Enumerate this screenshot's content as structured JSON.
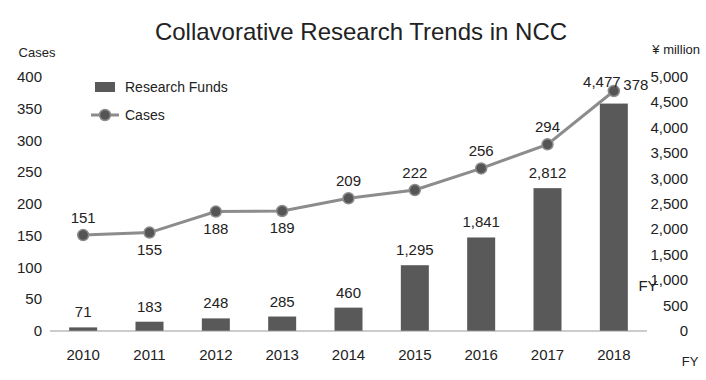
{
  "chart_data": {
    "type": "bar",
    "title": "Collavorative Research Trends in NCC",
    "x_label": "FY",
    "y_label": "Cases",
    "y2_label": "¥ million",
    "annotations": [
      "FY"
    ],
    "categories": [
      "2010",
      "2011",
      "2012",
      "2013",
      "2014",
      "2015",
      "2016",
      "2017",
      "2018"
    ],
    "series": [
      {
        "name": "Research Funds",
        "type": "bar",
        "color": "#595959",
        "axis": "y2",
        "values": [
          71,
          183,
          248,
          285,
          460,
          1295,
          1841,
          2812,
          4477
        ],
        "value_labels": [
          "71",
          "183",
          "248",
          "285",
          "460",
          "1,295",
          "1,841",
          "2,812",
          "4,477"
        ]
      },
      {
        "name": "Cases",
        "type": "line",
        "color": "#8c8c8c",
        "marker": "circle",
        "values": [
          151,
          155,
          188,
          189,
          209,
          222,
          256,
          294,
          378
        ]
      }
    ],
    "ylim": [
      0,
      400
    ],
    "yticks": [
      0,
      50,
      100,
      150,
      200,
      250,
      300,
      350,
      400
    ],
    "y2lim": [
      0,
      5000
    ],
    "y2ticks": [
      0,
      500,
      {
        "value": 1000,
        "label": "1,000"
      },
      {
        "value": 1500,
        "label": "1,500"
      },
      {
        "value": 2000,
        "label": "2,000"
      },
      {
        "value": 2500,
        "label": "2,500"
      },
      {
        "value": 3000,
        "label": "3,000"
      },
      {
        "value": 3500,
        "label": "3,500"
      },
      {
        "value": 4000,
        "label": "4,000"
      },
      {
        "value": 4500,
        "label": "4,500"
      },
      {
        "value": 5000,
        "label": "5,000"
      }
    ],
    "grid": false,
    "legend": "upper left",
    "data_labels": true
  }
}
